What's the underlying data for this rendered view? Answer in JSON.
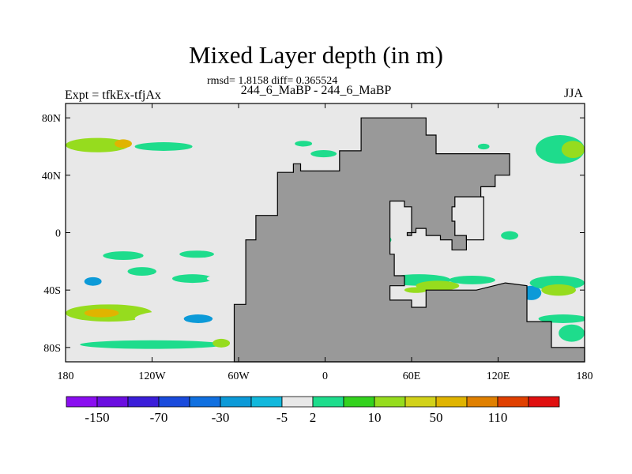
{
  "title": "Mixed Layer depth (in m)",
  "subtitle": "rmsd= 1.8158 diff= 0.365524",
  "center_label": "244_6_MaBP - 244_6_MaBP",
  "left_label": "Expt = tfkEx-tfjAx",
  "right_label": "JJA",
  "colors": {
    "land": "#999999",
    "ocean_neutral": "#e8e8e8",
    "coast": "#000000"
  },
  "map": {
    "lon_range": [
      -180,
      180
    ],
    "lat_range": [
      -90,
      90
    ],
    "x_ticks": [
      {
        "lon": -180,
        "label": "180"
      },
      {
        "lon": -120,
        "label": "120W"
      },
      {
        "lon": -60,
        "label": "60W"
      },
      {
        "lon": 0,
        "label": "0"
      },
      {
        "lon": 60,
        "label": "60E"
      },
      {
        "lon": 120,
        "label": "120E"
      },
      {
        "lon": 180,
        "label": "180"
      }
    ],
    "y_ticks": [
      {
        "lat": 80,
        "label": "80N"
      },
      {
        "lat": 40,
        "label": "40N"
      },
      {
        "lat": 0,
        "label": "0"
      },
      {
        "lat": -40,
        "label": "40S"
      },
      {
        "lat": -80,
        "label": "80S"
      }
    ],
    "land_outline": [
      [
        -63,
        -80
      ],
      [
        -63,
        -50
      ],
      [
        -55,
        -50
      ],
      [
        -55,
        -5
      ],
      [
        -48,
        -5
      ],
      [
        -48,
        12
      ],
      [
        -33,
        12
      ],
      [
        -33,
        42
      ],
      [
        -22,
        42
      ],
      [
        -22,
        48
      ],
      [
        -17,
        48
      ],
      [
        -17,
        43
      ],
      [
        10,
        43
      ],
      [
        10,
        57
      ],
      [
        25,
        57
      ],
      [
        25,
        80
      ],
      [
        70,
        80
      ],
      [
        70,
        68
      ],
      [
        77,
        68
      ],
      [
        77,
        55
      ],
      [
        128,
        55
      ],
      [
        128,
        40
      ],
      [
        118,
        40
      ],
      [
        118,
        32
      ],
      [
        108,
        32
      ],
      [
        108,
        20
      ],
      [
        98,
        20
      ],
      [
        98,
        -12
      ],
      [
        88,
        -12
      ],
      [
        88,
        -5
      ],
      [
        80,
        -5
      ],
      [
        80,
        -2
      ],
      [
        70,
        -2
      ],
      [
        70,
        3
      ],
      [
        63,
        3
      ],
      [
        63,
        0
      ],
      [
        57,
        0
      ],
      [
        57,
        -2
      ],
      [
        60,
        -2
      ],
      [
        60,
        18
      ],
      [
        55,
        18
      ],
      [
        55,
        22
      ],
      [
        45,
        22
      ],
      [
        45,
        -15
      ],
      [
        48,
        -15
      ],
      [
        48,
        -30
      ],
      [
        55,
        -30
      ],
      [
        55,
        -37
      ],
      [
        45,
        -37
      ],
      [
        45,
        -47
      ],
      [
        60,
        -47
      ],
      [
        60,
        -52
      ],
      [
        70,
        -52
      ],
      [
        70,
        -40
      ],
      [
        105,
        -40
      ],
      [
        125,
        -35
      ],
      [
        140,
        -37
      ],
      [
        140,
        -62
      ],
      [
        157,
        -62
      ],
      [
        157,
        -80
      ],
      [
        180,
        -80
      ],
      [
        180,
        -90
      ],
      [
        -63,
        -90
      ]
    ],
    "inland_basin": [
      [
        90,
        25
      ],
      [
        110,
        25
      ],
      [
        110,
        -5
      ],
      [
        98,
        -5
      ],
      [
        98,
        -2
      ],
      [
        90,
        -2
      ],
      [
        90,
        8
      ],
      [
        88,
        8
      ],
      [
        88,
        18
      ],
      [
        90,
        18
      ]
    ],
    "anomaly_patches": [
      {
        "lon": -158,
        "lat": 61,
        "rx": 22,
        "ry": 5,
        "value": 10
      },
      {
        "lon": -140,
        "lat": 62,
        "rx": 6,
        "ry": 3,
        "value": 50
      },
      {
        "lon": -112,
        "lat": 60,
        "rx": 20,
        "ry": 3,
        "value": 2
      },
      {
        "lon": -15,
        "lat": 62,
        "rx": 6,
        "ry": 2,
        "value": 2
      },
      {
        "lon": -1,
        "lat": 55,
        "rx": 9,
        "ry": 2.5,
        "value": 2
      },
      {
        "lon": 110,
        "lat": 60,
        "rx": 4,
        "ry": 2,
        "value": 2
      },
      {
        "lon": 163,
        "lat": 58,
        "rx": 17,
        "ry": 10,
        "value": 2
      },
      {
        "lon": 172,
        "lat": 58,
        "rx": 8,
        "ry": 6,
        "value": 10
      },
      {
        "lon": -137,
        "lat": 6,
        "rx": 25,
        "ry": 3,
        "value": -5
      },
      {
        "lon": -100,
        "lat": 9,
        "rx": 14,
        "ry": 2.5,
        "value": -5
      },
      {
        "lon": -108,
        "lat": -3,
        "rx": 10,
        "ry": 2,
        "value": -5
      },
      {
        "lon": -140,
        "lat": -16,
        "rx": 14,
        "ry": 3,
        "value": 2
      },
      {
        "lon": -127,
        "lat": -27,
        "rx": 10,
        "ry": 3,
        "value": 2
      },
      {
        "lon": -89,
        "lat": -15,
        "rx": 12,
        "ry": 2.5,
        "value": 2
      },
      {
        "lon": -48,
        "lat": -20,
        "rx": 5,
        "ry": 3,
        "value": 2
      },
      {
        "lon": -160,
        "lat": -34,
        "rx": 16,
        "ry": 5,
        "value": -5
      },
      {
        "lon": -161,
        "lat": -34,
        "rx": 6,
        "ry": 3,
        "value": -30
      },
      {
        "lon": -132,
        "lat": -40,
        "rx": 18,
        "ry": 3,
        "value": -5
      },
      {
        "lon": -92,
        "lat": -32,
        "rx": 14,
        "ry": 3,
        "value": 2
      },
      {
        "lon": -76,
        "lat": -32,
        "rx": 6,
        "ry": 2,
        "value": -5
      },
      {
        "lon": -150,
        "lat": -56,
        "rx": 30,
        "ry": 6,
        "value": 10
      },
      {
        "lon": -155,
        "lat": -56,
        "rx": 12,
        "ry": 3,
        "value": 50
      },
      {
        "lon": -98,
        "lat": -60,
        "rx": 34,
        "ry": 6,
        "value": -5
      },
      {
        "lon": -88,
        "lat": -60,
        "rx": 10,
        "ry": 3,
        "value": -30
      },
      {
        "lon": -140,
        "lat": -72,
        "rx": 40,
        "ry": 5,
        "value": -5
      },
      {
        "lon": -120,
        "lat": -78,
        "rx": 50,
        "ry": 3,
        "value": 2
      },
      {
        "lon": -72,
        "lat": -77,
        "rx": 6,
        "ry": 3,
        "value": 10
      },
      {
        "lon": 33,
        "lat": 0,
        "rx": 6,
        "ry": 3,
        "value": 10
      },
      {
        "lon": 41,
        "lat": -5,
        "rx": 5,
        "ry": 3,
        "value": 2
      },
      {
        "lon": 128,
        "lat": -2,
        "rx": 6,
        "ry": 3,
        "value": 2
      },
      {
        "lon": 155,
        "lat": -15,
        "rx": 9,
        "ry": 3,
        "value": -5
      },
      {
        "lon": -17,
        "lat": -18,
        "rx": 5,
        "ry": 3,
        "value": 2
      },
      {
        "lon": 65,
        "lat": -33,
        "rx": 22,
        "ry": 4,
        "value": 2
      },
      {
        "lon": 78,
        "lat": -37,
        "rx": 15,
        "ry": 3.5,
        "value": 10
      },
      {
        "lon": 63,
        "lat": -40,
        "rx": 8,
        "ry": 2,
        "value": 10
      },
      {
        "lon": 102,
        "lat": -33,
        "rx": 16,
        "ry": 3,
        "value": 2
      },
      {
        "lon": 128,
        "lat": -36,
        "rx": 6,
        "ry": 2,
        "value": -5
      },
      {
        "lon": 143,
        "lat": -40,
        "rx": 13,
        "ry": 8,
        "value": -5
      },
      {
        "lon": 143,
        "lat": -42,
        "rx": 7,
        "ry": 5,
        "value": -30
      },
      {
        "lon": 161,
        "lat": -35,
        "rx": 19,
        "ry": 5,
        "value": 2
      },
      {
        "lon": 162,
        "lat": -40,
        "rx": 12,
        "ry": 4,
        "value": 10
      },
      {
        "lon": 165,
        "lat": -60,
        "rx": 17,
        "ry": 3,
        "value": 2
      },
      {
        "lon": 171,
        "lat": -70,
        "rx": 9,
        "ry": 6,
        "value": 2
      }
    ]
  },
  "colorbar": {
    "colors": [
      "#8a0ef0",
      "#6b0ee0",
      "#3b1ed9",
      "#1a4bdc",
      "#1070e0",
      "#0c9ad8",
      "#12b8dc",
      "#e8e8e8",
      "#1edc8c",
      "#34d21e",
      "#96dc1e",
      "#d2d21a",
      "#e0b400",
      "#e08000",
      "#e04000",
      "#e01010"
    ],
    "labels": [
      "-150",
      "-70",
      "-30",
      "-5",
      "2",
      "10",
      "50",
      "110"
    ],
    "label_boundaries": [
      1,
      3,
      5,
      7,
      8,
      10,
      12,
      14
    ]
  }
}
